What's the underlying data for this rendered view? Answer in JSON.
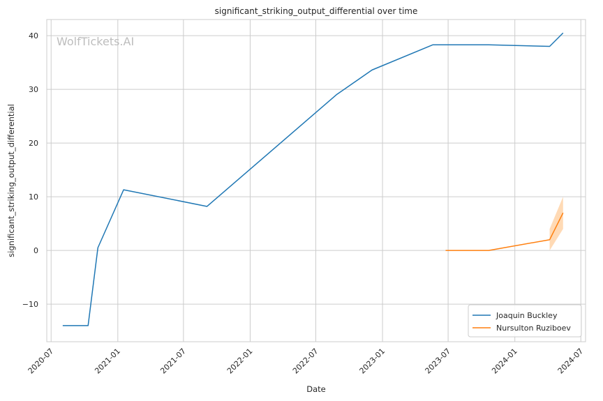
{
  "chart_data": {
    "type": "line",
    "title": "significant_striking_output_differential over time",
    "xlabel": "Date",
    "ylabel": "significant_striking_output_differential",
    "watermark": "WolfTickets.AI",
    "x_axis": {
      "type": "date",
      "range": [
        "2020-06-19",
        "2024-07-14"
      ],
      "ticks": [
        "2020-07-01",
        "2021-01-01",
        "2021-07-01",
        "2022-01-01",
        "2022-07-01",
        "2023-01-01",
        "2023-07-01",
        "2024-01-01",
        "2024-07-01"
      ],
      "tick_labels": [
        "2020-07",
        "2021-01",
        "2021-07",
        "2022-01",
        "2022-07",
        "2023-01",
        "2023-07",
        "2024-01",
        "2024-07"
      ]
    },
    "y_axis": {
      "range": [
        -17,
        43
      ],
      "ticks": [
        -10,
        0,
        10,
        20,
        30,
        40
      ],
      "tick_labels": [
        "−10",
        "0",
        "10",
        "20",
        "30",
        "40"
      ]
    },
    "grid": true,
    "legend_position": "bottom-right",
    "series": [
      {
        "name": "Joaquin Buckley",
        "color": "#1f77b4",
        "points": [
          {
            "x": "2020-08-02",
            "y": -14
          },
          {
            "x": "2020-10-11",
            "y": -14
          },
          {
            "x": "2020-11-07",
            "y": 0.5
          },
          {
            "x": "2021-01-17",
            "y": 11.3
          },
          {
            "x": "2021-09-04",
            "y": 8.2
          },
          {
            "x": "2022-08-27",
            "y": 29
          },
          {
            "x": "2022-12-03",
            "y": 33.6
          },
          {
            "x": "2023-05-20",
            "y": 38.3
          },
          {
            "x": "2023-10-21",
            "y": 38.3
          },
          {
            "x": "2024-04-06",
            "y": 38
          },
          {
            "x": "2024-05-13",
            "y": 40.5
          }
        ]
      },
      {
        "name": "Nursulton Ruziboev",
        "color": "#ff7f0e",
        "band_color": "#ffbb78",
        "points": [
          {
            "x": "2023-06-24",
            "y": 0
          },
          {
            "x": "2023-10-21",
            "y": 0
          },
          {
            "x": "2024-04-06",
            "y": 2,
            "lo": 0,
            "hi": 4
          },
          {
            "x": "2024-05-13",
            "y": 7,
            "lo": 4,
            "hi": 10
          }
        ]
      }
    ]
  }
}
